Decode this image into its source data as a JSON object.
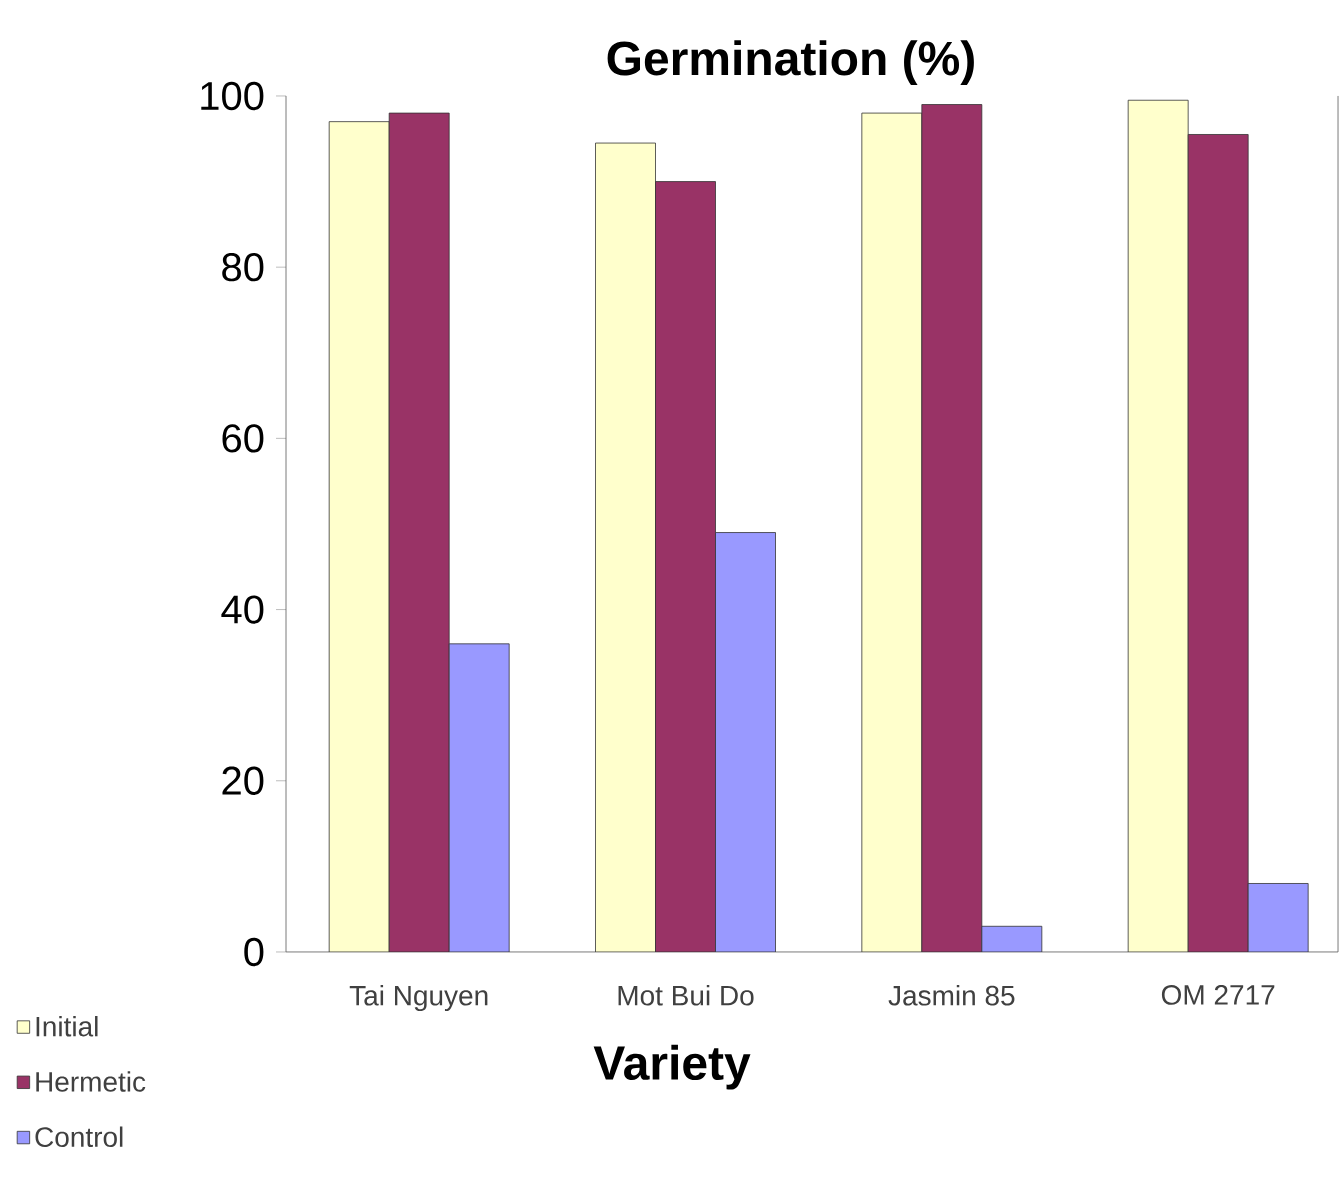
{
  "chart_data": {
    "type": "bar",
    "title": "Germination (%)",
    "xlabel": "Variety",
    "categories": [
      "Tai Nguyen",
      "Mot Bui Do",
      "Jasmin 85",
      "OM 2717"
    ],
    "series": [
      {
        "name": "Initial",
        "color": "#ffffcc",
        "values": [
          97,
          94.5,
          98,
          99.5
        ]
      },
      {
        "name": "Hermetic",
        "color": "#993366",
        "values": [
          98,
          90,
          99,
          95.5
        ]
      },
      {
        "name": "Control",
        "color": "#9999ff",
        "values": [
          36,
          49,
          3,
          8
        ]
      }
    ],
    "ylim": [
      0,
      100
    ],
    "yticks": [
      0,
      20,
      40,
      60,
      80,
      100
    ],
    "grid": false,
    "legend": "bottom left"
  }
}
